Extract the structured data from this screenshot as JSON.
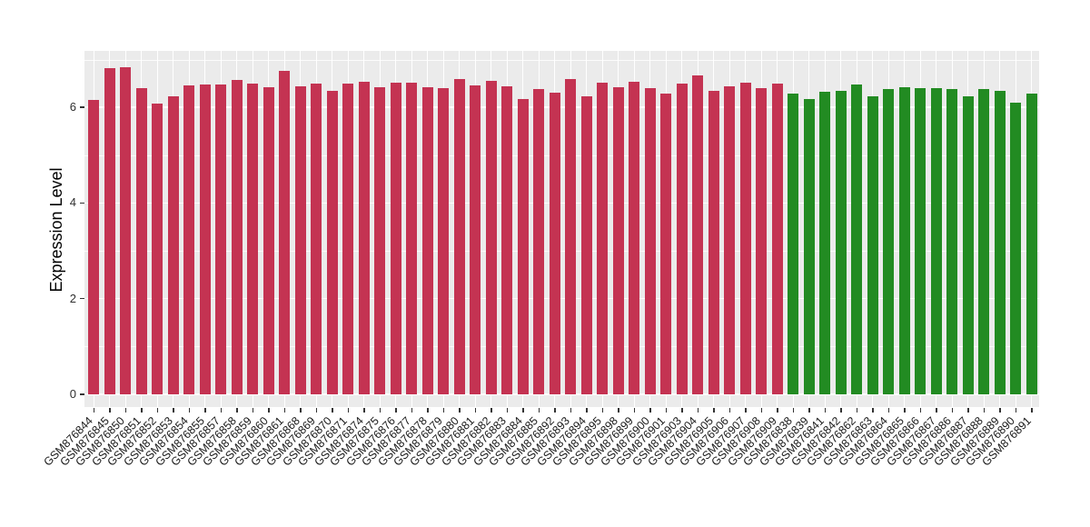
{
  "chart_data": {
    "type": "bar",
    "title": "",
    "xlabel": "",
    "ylabel": "Expression Level",
    "ylim": [
      0,
      7.2
    ],
    "yticks": [
      0,
      2,
      4,
      6
    ],
    "grid": {
      "color": "#FFFFFF",
      "horizontal_major": [
        0,
        2,
        4,
        6
      ],
      "horizontal_minor": [
        1,
        3,
        5,
        7
      ],
      "vertical": "one gridline per sample"
    },
    "legend_position": "none",
    "style": {
      "panel_background": "#EBEBEB",
      "tick_color": "#333333",
      "tick_label_color": "#303030",
      "x_label_rotation_deg": 45
    },
    "groups": [
      {
        "color": "#C43352",
        "samples": [
          {
            "label": "GSM876844",
            "value": 6.15
          },
          {
            "label": "GSM876845",
            "value": 6.83
          },
          {
            "label": "GSM876850",
            "value": 6.84
          },
          {
            "label": "GSM876851",
            "value": 6.41
          },
          {
            "label": "GSM876852",
            "value": 6.08
          },
          {
            "label": "GSM876853",
            "value": 6.24
          },
          {
            "label": "GSM876854",
            "value": 6.46
          },
          {
            "label": "GSM876855",
            "value": 6.48
          },
          {
            "label": "GSM876857",
            "value": 6.48
          },
          {
            "label": "GSM876858",
            "value": 6.58
          },
          {
            "label": "GSM876859",
            "value": 6.49
          },
          {
            "label": "GSM876860",
            "value": 6.43
          },
          {
            "label": "GSM876861",
            "value": 6.76
          },
          {
            "label": "GSM876868",
            "value": 6.44
          },
          {
            "label": "GSM876869",
            "value": 6.49
          },
          {
            "label": "GSM876870",
            "value": 6.35
          },
          {
            "label": "GSM876871",
            "value": 6.5
          },
          {
            "label": "GSM876874",
            "value": 6.54
          },
          {
            "label": "GSM876875",
            "value": 6.43
          },
          {
            "label": "GSM876876",
            "value": 6.51
          },
          {
            "label": "GSM876877",
            "value": 6.52
          },
          {
            "label": "GSM876878",
            "value": 6.43
          },
          {
            "label": "GSM876879",
            "value": 6.4
          },
          {
            "label": "GSM876880",
            "value": 6.59
          },
          {
            "label": "GSM876881",
            "value": 6.46
          },
          {
            "label": "GSM876882",
            "value": 6.55
          },
          {
            "label": "GSM876883",
            "value": 6.44
          },
          {
            "label": "GSM876884",
            "value": 6.17
          },
          {
            "label": "GSM876885",
            "value": 6.38
          },
          {
            "label": "GSM876892",
            "value": 6.31
          },
          {
            "label": "GSM876893",
            "value": 6.59
          },
          {
            "label": "GSM876894",
            "value": 6.24
          },
          {
            "label": "GSM876895",
            "value": 6.52
          },
          {
            "label": "GSM876898",
            "value": 6.43
          },
          {
            "label": "GSM876899",
            "value": 6.54
          },
          {
            "label": "GSM876900",
            "value": 6.41
          },
          {
            "label": "GSM876901",
            "value": 6.29
          },
          {
            "label": "GSM876903",
            "value": 6.49
          },
          {
            "label": "GSM876904",
            "value": 6.66
          },
          {
            "label": "GSM876905",
            "value": 6.35
          },
          {
            "label": "GSM876906",
            "value": 6.45
          },
          {
            "label": "GSM876907",
            "value": 6.51
          },
          {
            "label": "GSM876908",
            "value": 6.41
          },
          {
            "label": "GSM876909",
            "value": 6.49
          }
        ]
      },
      {
        "color": "#228B22",
        "samples": [
          {
            "label": "GSM876838",
            "value": 6.28
          },
          {
            "label": "GSM876839",
            "value": 6.17
          },
          {
            "label": "GSM876841",
            "value": 6.32
          },
          {
            "label": "GSM876842",
            "value": 6.34
          },
          {
            "label": "GSM876862",
            "value": 6.48
          },
          {
            "label": "GSM876863",
            "value": 6.24
          },
          {
            "label": "GSM876864",
            "value": 6.39
          },
          {
            "label": "GSM876865",
            "value": 6.43
          },
          {
            "label": "GSM876866",
            "value": 6.41
          },
          {
            "label": "GSM876867",
            "value": 6.4
          },
          {
            "label": "GSM876886",
            "value": 6.38
          },
          {
            "label": "GSM876887",
            "value": 6.24
          },
          {
            "label": "GSM876888",
            "value": 6.38
          },
          {
            "label": "GSM876889",
            "value": 6.35
          },
          {
            "label": "GSM876890",
            "value": 6.1
          },
          {
            "label": "GSM876891",
            "value": 6.28
          }
        ]
      }
    ]
  }
}
